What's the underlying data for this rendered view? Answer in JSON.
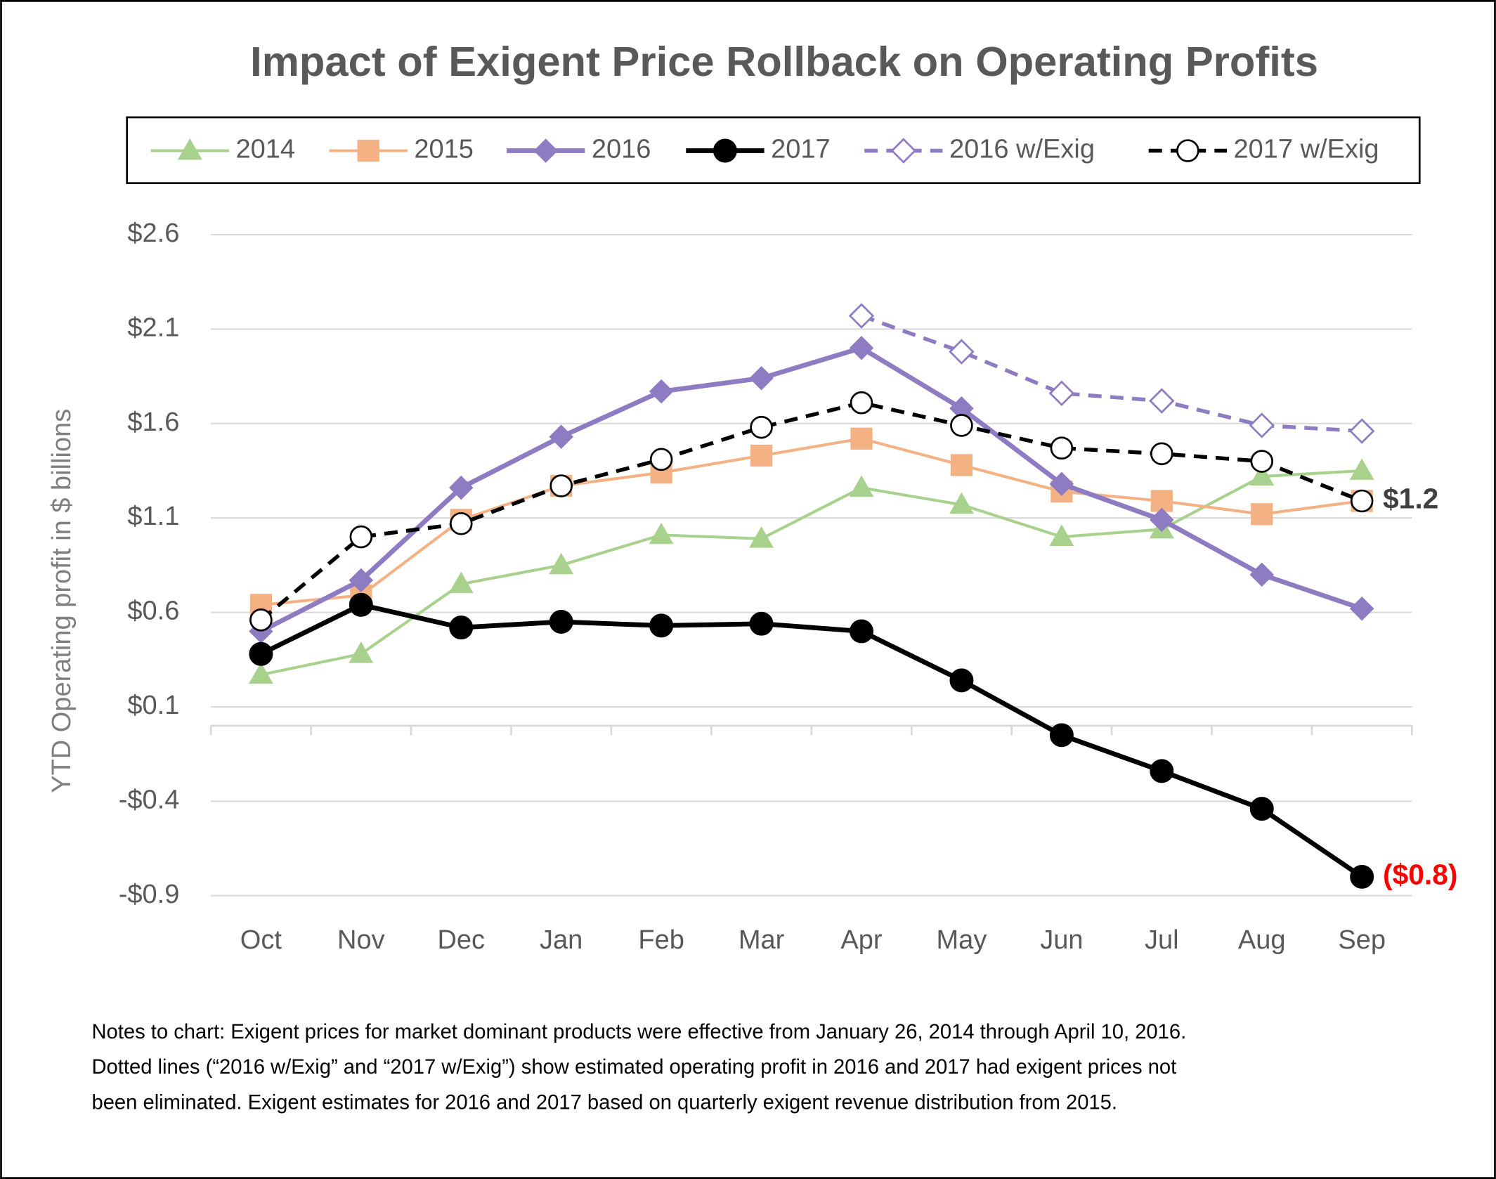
{
  "chart_data": {
    "type": "line",
    "title": "Impact of Exigent Price Rollback on Operating Profits",
    "y_label": "YTD Operating profit in $ billions",
    "categories": [
      "Oct",
      "Nov",
      "Dec",
      "Jan",
      "Feb",
      "Mar",
      "Apr",
      "May",
      "Jun",
      "Jul",
      "Aug",
      "Sep"
    ],
    "ylim": [
      -0.9,
      2.6
    ],
    "yticks": [
      {
        "value": 2.6,
        "label": "$2.6"
      },
      {
        "value": 2.1,
        "label": "$2.1"
      },
      {
        "value": 1.6,
        "label": "$1.6"
      },
      {
        "value": 1.1,
        "label": "$1.1"
      },
      {
        "value": 0.6,
        "label": "$0.6"
      },
      {
        "value": 0.1,
        "label": "$0.1"
      },
      {
        "value": -0.4,
        "label": "-$0.4"
      },
      {
        "value": -0.9,
        "label": "-$0.9"
      }
    ],
    "grid": true,
    "legend": "top",
    "series": [
      {
        "name": "2014",
        "color": "#a9d18e",
        "marker": "triangle",
        "filled": true,
        "dashed": false,
        "width": 3,
        "values": [
          0.27,
          0.38,
          0.75,
          0.85,
          1.01,
          0.99,
          1.26,
          1.17,
          1.0,
          1.04,
          1.32,
          1.35
        ]
      },
      {
        "name": "2015",
        "color": "#f4b183",
        "marker": "square",
        "filled": true,
        "dashed": false,
        "width": 3,
        "values": [
          0.64,
          0.69,
          1.09,
          1.27,
          1.34,
          1.43,
          1.52,
          1.38,
          1.24,
          1.19,
          1.12,
          1.19
        ]
      },
      {
        "name": "2016",
        "color": "#8e7cc3",
        "marker": "diamond",
        "filled": true,
        "dashed": false,
        "width": 5,
        "values": [
          0.5,
          0.77,
          1.26,
          1.53,
          1.77,
          1.84,
          2.0,
          1.68,
          1.28,
          1.09,
          0.8,
          0.62
        ]
      },
      {
        "name": "2017",
        "color": "#000000",
        "marker": "circle",
        "filled": true,
        "dashed": false,
        "width": 5,
        "values": [
          0.38,
          0.64,
          0.52,
          0.55,
          0.53,
          0.54,
          0.5,
          0.24,
          -0.05,
          -0.24,
          -0.44,
          -0.8
        ],
        "value_labels": [
          null,
          null,
          null,
          null,
          null,
          null,
          null,
          null,
          null,
          null,
          null,
          "($0.8)"
        ],
        "label_color": "#ff0000"
      },
      {
        "name": "2016 w/Exig",
        "color": "#8e7cc3",
        "marker": "diamond",
        "filled": false,
        "dashed": true,
        "width": 4,
        "values": [
          null,
          null,
          null,
          null,
          null,
          null,
          2.17,
          1.98,
          1.76,
          1.72,
          1.59,
          1.56
        ]
      },
      {
        "name": "2017 w/Exig",
        "color": "#000000",
        "marker": "circle",
        "filled": false,
        "dashed": true,
        "width": 4,
        "values": [
          0.56,
          1.0,
          1.07,
          1.27,
          1.41,
          1.58,
          1.71,
          1.59,
          1.47,
          1.44,
          1.4,
          1.19
        ],
        "value_labels": [
          null,
          null,
          null,
          null,
          null,
          null,
          null,
          null,
          null,
          null,
          null,
          "$1.2"
        ],
        "label_color": "#404040"
      }
    ],
    "notes": [
      "Notes to chart: Exigent prices for market dominant products were effective from January 26, 2014 through April 10, 2016.",
      "Dotted lines (“2016 w/Exig” and “2017 w/Exig”) show estimated operating profit in 2016 and 2017 had exigent prices not",
      "been eliminated. Exigent estimates for 2016 and 2017 based on quarterly exigent revenue distribution from 2015."
    ]
  }
}
